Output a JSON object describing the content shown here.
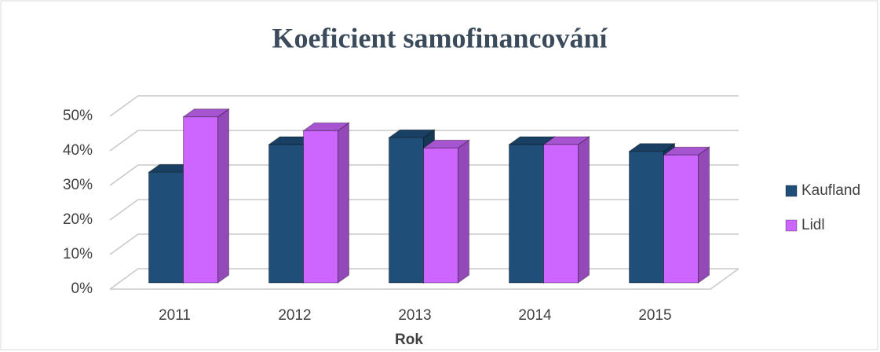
{
  "chart_data": {
    "type": "bar3d",
    "title": "Koeficient samofinancování",
    "x_label": "Rok",
    "categories": [
      "2011",
      "2012",
      "2013",
      "2014",
      "2015"
    ],
    "series": [
      {
        "name": "Kaufland",
        "color": "#1f4e79",
        "values": [
          32,
          40,
          42,
          40,
          38
        ]
      },
      {
        "name": "Lidl",
        "color": "#cc66ff",
        "values": [
          48,
          44,
          39,
          40,
          37
        ]
      }
    ],
    "ylim": [
      0,
      50
    ],
    "yticks": [
      {
        "value": 0,
        "label": "0%"
      },
      {
        "value": 10,
        "label": "10%"
      },
      {
        "value": 20,
        "label": "20%"
      },
      {
        "value": 30,
        "label": "30%"
      },
      {
        "value": 40,
        "label": "40%"
      },
      {
        "value": 50,
        "label": "50%"
      }
    ],
    "grid": true,
    "legend": "right"
  }
}
